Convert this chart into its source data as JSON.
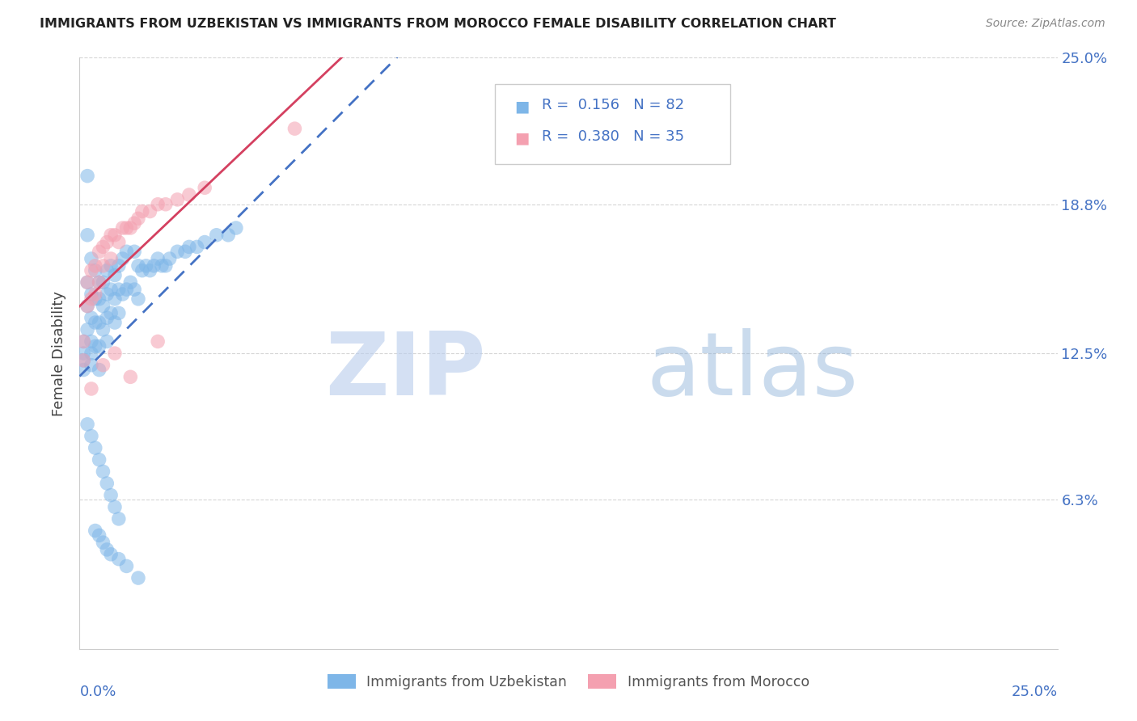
{
  "title": "IMMIGRANTS FROM UZBEKISTAN VS IMMIGRANTS FROM MOROCCO FEMALE DISABILITY CORRELATION CHART",
  "source": "Source: ZipAtlas.com",
  "ylabel": "Female Disability",
  "ytick_values": [
    0.063,
    0.125,
    0.188,
    0.25
  ],
  "ytick_labels": [
    "6.3%",
    "12.5%",
    "18.8%",
    "25.0%"
  ],
  "xmin": 0.0,
  "xmax": 0.25,
  "ymin": 0.0,
  "ymax": 0.25,
  "legend_label1": "Immigrants from Uzbekistan",
  "legend_label2": "Immigrants from Morocco",
  "R1": 0.156,
  "N1": 82,
  "R2": 0.38,
  "N2": 35,
  "color1": "#7eb6e8",
  "color2": "#f4a0b0",
  "line_color1": "#4472c4",
  "line_color2": "#d44060",
  "uzbekistan_x": [
    0.001,
    0.001,
    0.001,
    0.001,
    0.002,
    0.002,
    0.002,
    0.002,
    0.002,
    0.003,
    0.003,
    0.003,
    0.003,
    0.003,
    0.003,
    0.004,
    0.004,
    0.004,
    0.004,
    0.005,
    0.005,
    0.005,
    0.005,
    0.005,
    0.006,
    0.006,
    0.006,
    0.007,
    0.007,
    0.007,
    0.007,
    0.008,
    0.008,
    0.008,
    0.009,
    0.009,
    0.009,
    0.01,
    0.01,
    0.01,
    0.011,
    0.011,
    0.012,
    0.012,
    0.013,
    0.014,
    0.014,
    0.015,
    0.015,
    0.016,
    0.017,
    0.018,
    0.019,
    0.02,
    0.021,
    0.022,
    0.023,
    0.025,
    0.027,
    0.028,
    0.03,
    0.032,
    0.035,
    0.038,
    0.04,
    0.002,
    0.003,
    0.004,
    0.005,
    0.006,
    0.007,
    0.008,
    0.009,
    0.01,
    0.004,
    0.005,
    0.006,
    0.007,
    0.008,
    0.01,
    0.012,
    0.015
  ],
  "uzbekistan_y": [
    0.13,
    0.125,
    0.122,
    0.118,
    0.2,
    0.175,
    0.155,
    0.145,
    0.135,
    0.165,
    0.15,
    0.14,
    0.13,
    0.125,
    0.12,
    0.16,
    0.148,
    0.138,
    0.128,
    0.155,
    0.148,
    0.138,
    0.128,
    0.118,
    0.155,
    0.145,
    0.135,
    0.16,
    0.15,
    0.14,
    0.13,
    0.162,
    0.152,
    0.142,
    0.158,
    0.148,
    0.138,
    0.162,
    0.152,
    0.142,
    0.165,
    0.15,
    0.168,
    0.152,
    0.155,
    0.168,
    0.152,
    0.162,
    0.148,
    0.16,
    0.162,
    0.16,
    0.162,
    0.165,
    0.162,
    0.162,
    0.165,
    0.168,
    0.168,
    0.17,
    0.17,
    0.172,
    0.175,
    0.175,
    0.178,
    0.095,
    0.09,
    0.085,
    0.08,
    0.075,
    0.07,
    0.065,
    0.06,
    0.055,
    0.05,
    0.048,
    0.045,
    0.042,
    0.04,
    0.038,
    0.035,
    0.03
  ],
  "morocco_x": [
    0.001,
    0.001,
    0.002,
    0.002,
    0.003,
    0.003,
    0.004,
    0.004,
    0.005,
    0.005,
    0.006,
    0.006,
    0.007,
    0.008,
    0.008,
    0.009,
    0.01,
    0.011,
    0.012,
    0.013,
    0.014,
    0.015,
    0.016,
    0.018,
    0.02,
    0.022,
    0.025,
    0.028,
    0.032,
    0.003,
    0.006,
    0.009,
    0.013,
    0.02,
    0.055
  ],
  "morocco_y": [
    0.13,
    0.122,
    0.155,
    0.145,
    0.16,
    0.148,
    0.162,
    0.15,
    0.168,
    0.155,
    0.17,
    0.162,
    0.172,
    0.175,
    0.165,
    0.175,
    0.172,
    0.178,
    0.178,
    0.178,
    0.18,
    0.182,
    0.185,
    0.185,
    0.188,
    0.188,
    0.19,
    0.192,
    0.195,
    0.11,
    0.12,
    0.125,
    0.115,
    0.13,
    0.22
  ],
  "watermark_zip": "ZIP",
  "watermark_atlas": "atlas",
  "background_color": "#ffffff",
  "grid_color": "#cccccc"
}
